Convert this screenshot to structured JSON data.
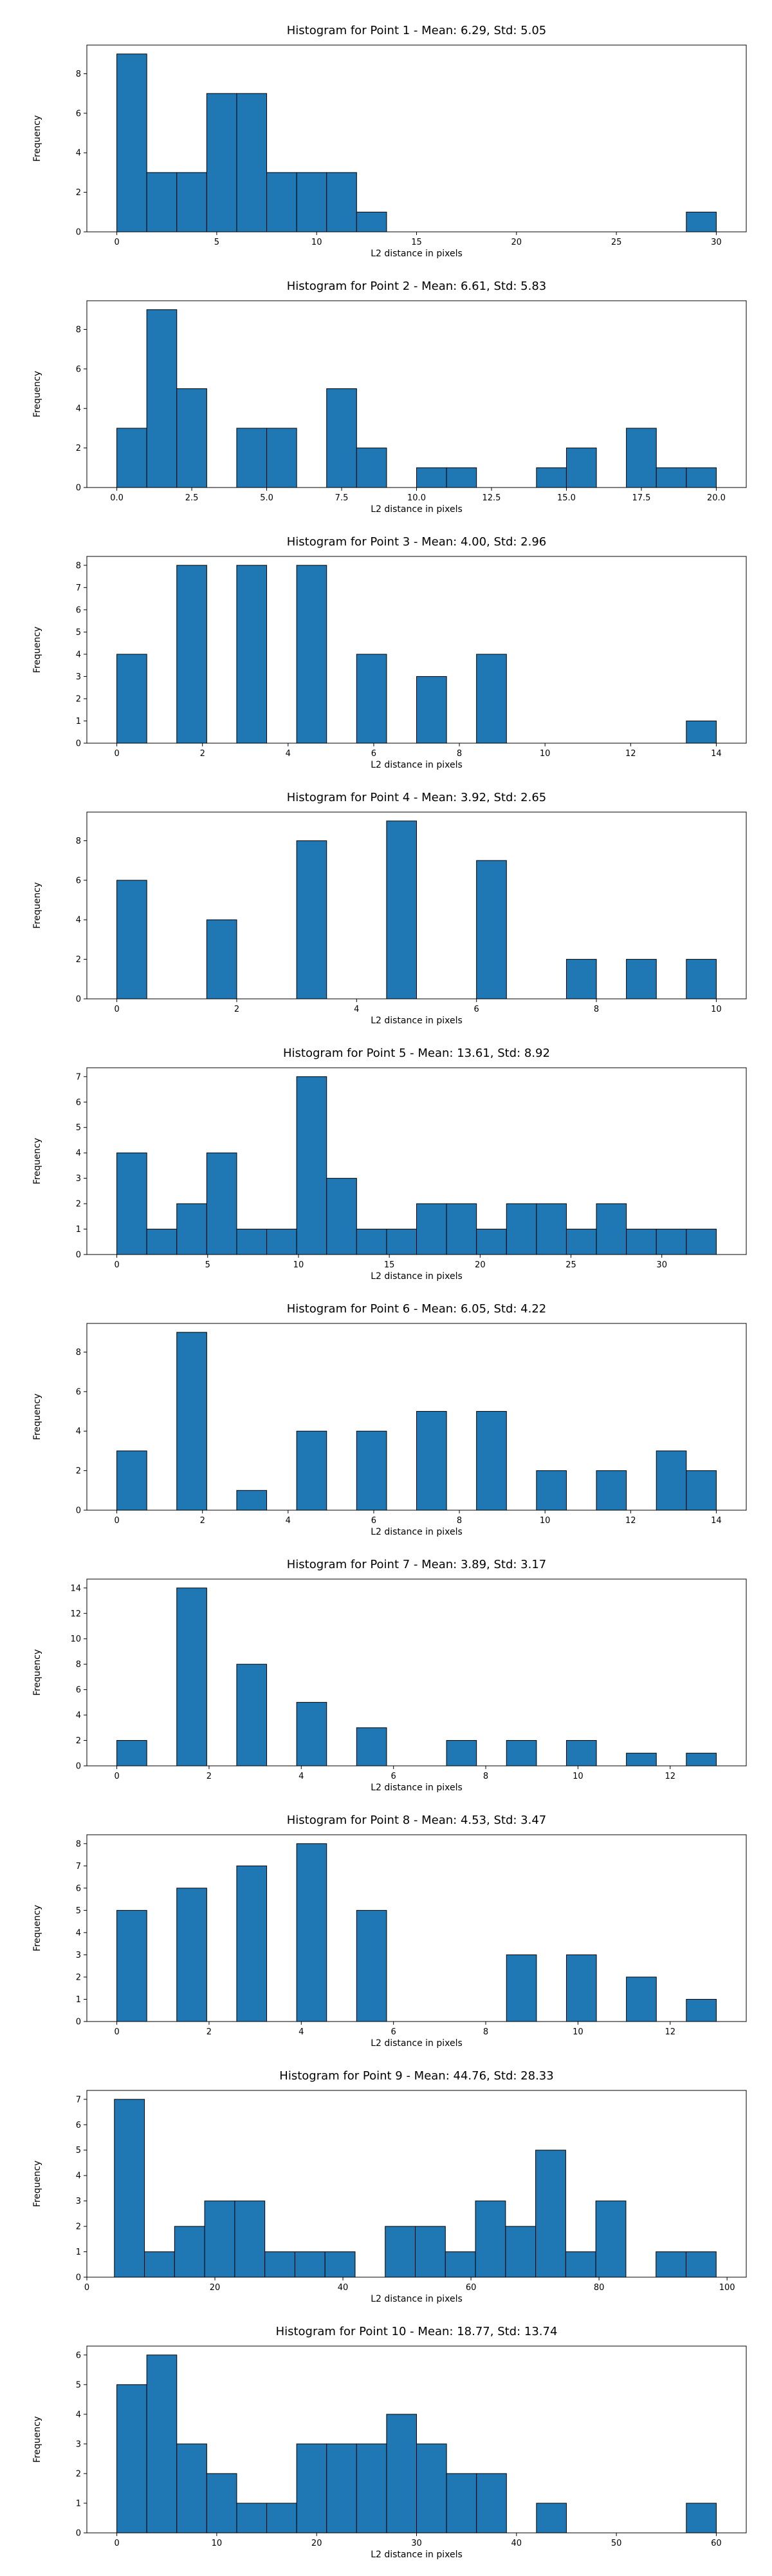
{
  "chart_data": [
    {
      "type": "bar",
      "title": "Histogram for Point 1 - Mean: 6.29, Std: 5.05",
      "xlabel": "L2 distance in pixels",
      "ylabel": "Frequency",
      "bin_edges": [
        0.0,
        1.5,
        3.0,
        4.5,
        6.0,
        7.5,
        9.0,
        10.5,
        12.0,
        13.5,
        15.0,
        16.5,
        18.0,
        19.5,
        21.0,
        22.5,
        24.0,
        25.5,
        27.0,
        28.5,
        30.0
      ],
      "values": [
        9,
        3,
        3,
        7,
        7,
        3,
        3,
        3,
        1,
        0,
        0,
        0,
        0,
        0,
        0,
        0,
        0,
        0,
        0,
        1
      ],
      "xlim": [
        -1.5,
        31.5
      ],
      "ylim": [
        0,
        9.45
      ],
      "xticks": [
        0,
        5,
        10,
        15,
        20,
        25,
        30
      ],
      "xtick_labels": [
        "0",
        "5",
        "10",
        "15",
        "20",
        "25",
        "30"
      ],
      "yticks": [
        0,
        2,
        4,
        6,
        8
      ],
      "ytick_labels": [
        "0",
        "2",
        "4",
        "6",
        "8"
      ],
      "grid": false
    },
    {
      "type": "bar",
      "title": "Histogram for Point 2 - Mean: 6.61, Std: 5.83",
      "xlabel": "L2 distance in pixels",
      "ylabel": "Frequency",
      "bin_edges": [
        0.0,
        1.0,
        2.0,
        3.0,
        4.0,
        5.0,
        6.0,
        7.0,
        8.0,
        9.0,
        10.0,
        11.0,
        12.0,
        13.0,
        14.0,
        15.0,
        16.0,
        17.0,
        18.0,
        19.0,
        20.0
      ],
      "values": [
        3,
        9,
        5,
        0,
        3,
        3,
        0,
        5,
        2,
        0,
        1,
        1,
        0,
        0,
        1,
        2,
        0,
        3,
        1,
        1
      ],
      "xlim": [
        -1.0,
        21.0
      ],
      "ylim": [
        0,
        9.45
      ],
      "xticks": [
        0,
        2.5,
        5,
        7.5,
        10,
        12.5,
        15,
        17.5,
        20
      ],
      "xtick_labels": [
        "0.0",
        "2.5",
        "5.0",
        "7.5",
        "10.0",
        "12.5",
        "15.0",
        "17.5",
        "20.0"
      ],
      "yticks": [
        0,
        2,
        4,
        6,
        8
      ],
      "ytick_labels": [
        "0",
        "2",
        "4",
        "6",
        "8"
      ],
      "grid": false
    },
    {
      "type": "bar",
      "title": "Histogram for Point 3 - Mean: 4.00, Std: 2.96",
      "xlabel": "L2 distance in pixels",
      "ylabel": "Frequency",
      "bin_edges": [
        0.0,
        0.7,
        1.4,
        2.1,
        2.8,
        3.5,
        4.2,
        4.9,
        5.6,
        6.3,
        7.0,
        7.7,
        8.4,
        9.1,
        9.8,
        10.5,
        11.2,
        11.9,
        12.6,
        13.3,
        14.0
      ],
      "values": [
        4,
        0,
        8,
        0,
        8,
        0,
        8,
        0,
        4,
        0,
        3,
        0,
        4,
        0,
        0,
        0,
        0,
        0,
        0,
        1
      ],
      "xlim": [
        -0.7,
        14.7
      ],
      "ylim": [
        0,
        8.4
      ],
      "xticks": [
        0,
        2,
        4,
        6,
        8,
        10,
        12,
        14
      ],
      "xtick_labels": [
        "0",
        "2",
        "4",
        "6",
        "8",
        "10",
        "12",
        "14"
      ],
      "yticks": [
        0,
        1,
        2,
        3,
        4,
        5,
        6,
        7,
        8
      ],
      "ytick_labels": [
        "0",
        "1",
        "2",
        "3",
        "4",
        "5",
        "6",
        "7",
        "8"
      ],
      "grid": false
    },
    {
      "type": "bar",
      "title": "Histogram for Point 4 - Mean: 3.92, Std: 2.65",
      "xlabel": "L2 distance in pixels",
      "ylabel": "Frequency",
      "bin_edges": [
        0.0,
        0.5,
        1.0,
        1.5,
        2.0,
        2.5,
        3.0,
        3.5,
        4.0,
        4.5,
        5.0,
        5.5,
        6.0,
        6.5,
        7.0,
        7.5,
        8.0,
        8.5,
        9.0,
        9.5,
        10.0
      ],
      "values": [
        6,
        0,
        0,
        4,
        0,
        0,
        8,
        0,
        0,
        9,
        0,
        0,
        7,
        0,
        0,
        2,
        0,
        2,
        0,
        2
      ],
      "xlim": [
        -0.5,
        10.5
      ],
      "ylim": [
        0,
        9.45
      ],
      "xticks": [
        0,
        2,
        4,
        6,
        8,
        10
      ],
      "xtick_labels": [
        "0",
        "2",
        "4",
        "6",
        "8",
        "10"
      ],
      "yticks": [
        0,
        2,
        4,
        6,
        8
      ],
      "ytick_labels": [
        "0",
        "2",
        "4",
        "6",
        "8"
      ],
      "grid": false
    },
    {
      "type": "bar",
      "title": "Histogram for Point 5 - Mean: 13.61, Std: 8.92",
      "xlabel": "L2 distance in pixels",
      "ylabel": "Frequency",
      "bin_edges": [
        0.0,
        1.65,
        3.3,
        4.95,
        6.6,
        8.25,
        9.9,
        11.55,
        13.2,
        14.85,
        16.5,
        18.15,
        19.8,
        21.45,
        23.1,
        24.75,
        26.4,
        28.05,
        29.7,
        31.35,
        33.0
      ],
      "values": [
        4,
        1,
        2,
        4,
        1,
        1,
        7,
        3,
        1,
        1,
        2,
        2,
        1,
        2,
        2,
        1,
        2,
        1,
        1,
        1
      ],
      "xlim": [
        -1.65,
        34.65
      ],
      "ylim": [
        0,
        7.35
      ],
      "xticks": [
        0,
        5,
        10,
        15,
        20,
        25,
        30
      ],
      "xtick_labels": [
        "0",
        "5",
        "10",
        "15",
        "20",
        "25",
        "30"
      ],
      "yticks": [
        0,
        1,
        2,
        3,
        4,
        5,
        6,
        7
      ],
      "ytick_labels": [
        "0",
        "1",
        "2",
        "3",
        "4",
        "5",
        "6",
        "7"
      ],
      "grid": false
    },
    {
      "type": "bar",
      "title": "Histogram for Point 6 - Mean: 6.05, Std: 4.22",
      "xlabel": "L2 distance in pixels",
      "ylabel": "Frequency",
      "bin_edges": [
        0.0,
        0.7,
        1.4,
        2.1,
        2.8,
        3.5,
        4.2,
        4.9,
        5.6,
        6.3,
        7.0,
        7.7,
        8.4,
        9.1,
        9.8,
        10.5,
        11.2,
        11.9,
        12.6,
        13.3,
        14.0
      ],
      "values": [
        3,
        0,
        9,
        0,
        1,
        0,
        4,
        0,
        4,
        0,
        5,
        0,
        5,
        0,
        2,
        0,
        2,
        0,
        3,
        2
      ],
      "xlim": [
        -0.7,
        14.7
      ],
      "ylim": [
        0,
        9.45
      ],
      "xticks": [
        0,
        2,
        4,
        6,
        8,
        10,
        12,
        14
      ],
      "xtick_labels": [
        "0",
        "2",
        "4",
        "6",
        "8",
        "10",
        "12",
        "14"
      ],
      "yticks": [
        0,
        2,
        4,
        6,
        8
      ],
      "ytick_labels": [
        "0",
        "2",
        "4",
        "6",
        "8"
      ],
      "grid": false
    },
    {
      "type": "bar",
      "title": "Histogram for Point 7 - Mean: 3.89, Std: 3.17",
      "xlabel": "L2 distance in pixels",
      "ylabel": "Frequency",
      "bin_edges": [
        0.0,
        0.65,
        1.3,
        1.95,
        2.6,
        3.25,
        3.9,
        4.55,
        5.2,
        5.85,
        6.5,
        7.15,
        7.8,
        8.45,
        9.1,
        9.75,
        10.4,
        11.05,
        11.7,
        12.35,
        13.0
      ],
      "values": [
        2,
        0,
        14,
        0,
        8,
        0,
        5,
        0,
        3,
        0,
        0,
        2,
        0,
        2,
        0,
        2,
        0,
        1,
        0,
        1
      ],
      "xlim": [
        -0.65,
        13.65
      ],
      "ylim": [
        0,
        14.7
      ],
      "xticks": [
        0,
        2,
        4,
        6,
        8,
        10,
        12
      ],
      "xtick_labels": [
        "0",
        "2",
        "4",
        "6",
        "8",
        "10",
        "12"
      ],
      "yticks": [
        0,
        2,
        4,
        6,
        8,
        10,
        12,
        14
      ],
      "ytick_labels": [
        "0",
        "2",
        "4",
        "6",
        "8",
        "10",
        "12",
        "14"
      ],
      "grid": false
    },
    {
      "type": "bar",
      "title": "Histogram for Point 8 - Mean: 4.53, Std: 3.47",
      "xlabel": "L2 distance in pixels",
      "ylabel": "Frequency",
      "bin_edges": [
        0.0,
        0.65,
        1.3,
        1.95,
        2.6,
        3.25,
        3.9,
        4.55,
        5.2,
        5.85,
        6.5,
        7.15,
        7.8,
        8.45,
        9.1,
        9.75,
        10.4,
        11.05,
        11.7,
        12.35,
        13.0
      ],
      "values": [
        5,
        0,
        6,
        0,
        7,
        0,
        8,
        0,
        5,
        0,
        0,
        0,
        0,
        3,
        0,
        3,
        0,
        2,
        0,
        1
      ],
      "xlim": [
        -0.65,
        13.65
      ],
      "ylim": [
        0,
        8.4
      ],
      "xticks": [
        0,
        2,
        4,
        6,
        8,
        10,
        12
      ],
      "xtick_labels": [
        "0",
        "2",
        "4",
        "6",
        "8",
        "10",
        "12"
      ],
      "yticks": [
        0,
        1,
        2,
        3,
        4,
        5,
        6,
        7,
        8
      ],
      "ytick_labels": [
        "0",
        "1",
        "2",
        "3",
        "4",
        "5",
        "6",
        "7",
        "8"
      ],
      "grid": false
    },
    {
      "type": "bar",
      "title": "Histogram for Point 9 - Mean: 44.76, Std: 28.33",
      "xlabel": "L2 distance in pixels",
      "ylabel": "Frequency",
      "bin_edges": [
        4.3,
        9.0,
        13.7,
        18.4,
        23.1,
        27.8,
        32.5,
        37.2,
        41.9,
        46.6,
        51.3,
        56.0,
        60.7,
        65.4,
        70.1,
        74.8,
        79.5,
        84.2,
        88.9,
        93.6,
        98.3
      ],
      "values": [
        7,
        1,
        2,
        3,
        3,
        1,
        1,
        1,
        0,
        2,
        2,
        1,
        3,
        2,
        5,
        1,
        3,
        0,
        1,
        1
      ],
      "xlim": [
        0,
        103
      ],
      "ylim": [
        0,
        7.35
      ],
      "xticks": [
        0,
        20,
        40,
        60,
        80,
        100
      ],
      "xtick_labels": [
        "0",
        "20",
        "40",
        "60",
        "80",
        "100"
      ],
      "yticks": [
        0,
        1,
        2,
        3,
        4,
        5,
        6,
        7
      ],
      "ytick_labels": [
        "0",
        "1",
        "2",
        "3",
        "4",
        "5",
        "6",
        "7"
      ],
      "grid": false
    },
    {
      "type": "bar",
      "title": "Histogram for Point 10 - Mean: 18.77, Std: 13.74",
      "xlabel": "L2 distance in pixels",
      "ylabel": "Frequency",
      "bin_edges": [
        0.0,
        3.0,
        6.0,
        9.0,
        12.0,
        15.0,
        18.0,
        21.0,
        24.0,
        27.0,
        30.0,
        33.0,
        36.0,
        39.0,
        42.0,
        45.0,
        48.0,
        51.0,
        54.0,
        57.0,
        60.0
      ],
      "values": [
        5,
        6,
        3,
        2,
        1,
        1,
        3,
        3,
        3,
        4,
        3,
        2,
        2,
        0,
        1,
        0,
        0,
        0,
        0,
        1
      ],
      "xlim": [
        -3,
        63
      ],
      "ylim": [
        0,
        6.3
      ],
      "xticks": [
        0,
        10,
        20,
        30,
        40,
        50,
        60
      ],
      "xtick_labels": [
        "0",
        "10",
        "20",
        "30",
        "40",
        "50",
        "60"
      ],
      "yticks": [
        0,
        1,
        2,
        3,
        4,
        5,
        6
      ],
      "ytick_labels": [
        "0",
        "1",
        "2",
        "3",
        "4",
        "5",
        "6"
      ],
      "grid": false
    }
  ]
}
